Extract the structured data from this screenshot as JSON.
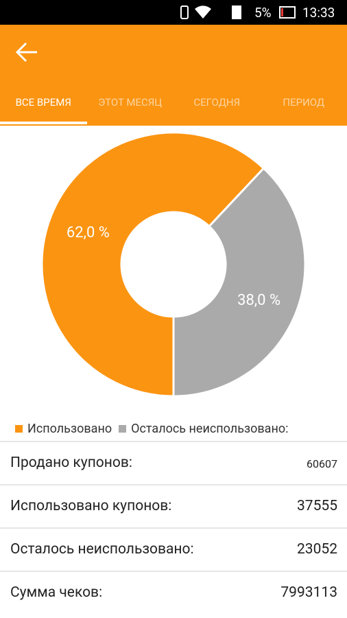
{
  "status_bar": {
    "battery": "5%",
    "time": "13:33"
  },
  "tabs": [
    "ВСЕ ВРЕМЯ",
    "ЭТОТ МЕСЯЦ",
    "СЕГОДНЯ",
    "ПЕРИОД"
  ],
  "chart_data": {
    "type": "pie",
    "categories": [
      "Использовано",
      "Осталось неиспользовано:"
    ],
    "values": [
      62.0,
      38.0
    ],
    "value_labels": [
      "62,0 %",
      "38,0 %"
    ],
    "colors": [
      "#fb9411",
      "#aaaaaa"
    ]
  },
  "rows": [
    {
      "label": "Продано купонов:",
      "value": 60607
    },
    {
      "label": "Использовано купонов:",
      "value": 37555
    },
    {
      "label": "Осталось неиспользовано:",
      "value": 23052
    },
    {
      "label": "Сумма чеков:",
      "value": 7993113
    }
  ]
}
